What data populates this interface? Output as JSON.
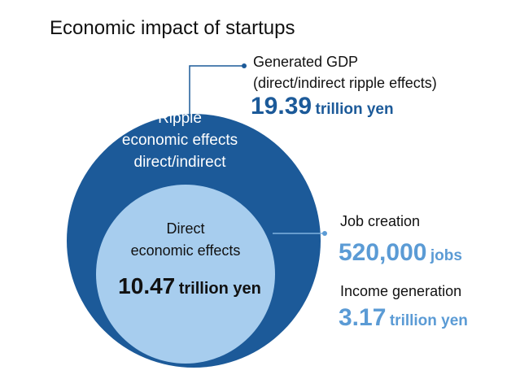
{
  "title": "Economic impact of startups",
  "outer_circle": {
    "label_lines": [
      "Ripple",
      "economic effects",
      "direct/indirect"
    ],
    "color": "#1c5a99"
  },
  "inner_circle": {
    "label_lines": [
      "Direct",
      "economic effects"
    ],
    "value": "10.47",
    "unit": "trillion yen",
    "color": "#a7cdee"
  },
  "gdp": {
    "label_line1": "Generated GDP",
    "label_line2": "(direct/indirect ripple effects)",
    "value": "19.39",
    "unit": "trillion yen",
    "color": "#1c5a99"
  },
  "jobs": {
    "label": "Job creation",
    "value": "520,000",
    "unit": "jobs",
    "color": "#5b9bd5"
  },
  "income": {
    "label": "Income generation",
    "value": "3.17",
    "unit": "trillion yen",
    "color": "#5b9bd5"
  }
}
